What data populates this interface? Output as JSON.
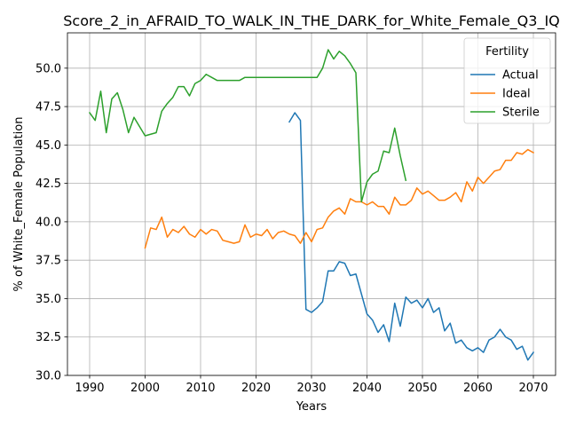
{
  "chart_data": {
    "type": "line",
    "title": "Score_2_in_AFRAID_TO_WALK_IN_THE_DARK_for_White_Female_Q3_IQ",
    "xlabel": "Years",
    "ylabel": "% of White_Female Population",
    "xlim": [
      1986,
      2074
    ],
    "ylim": [
      30.0,
      52.3
    ],
    "xticks": [
      1990,
      2000,
      2010,
      2020,
      2030,
      2040,
      2050,
      2060,
      2070
    ],
    "yticks": [
      30.0,
      32.5,
      35.0,
      37.5,
      40.0,
      42.5,
      45.0,
      47.5,
      50.0
    ],
    "grid": true,
    "legend": {
      "title": "Fertility",
      "placement": "top-right"
    },
    "series": [
      {
        "name": "Actual",
        "color": "#1f77b4",
        "x": [
          2026,
          2027,
          2028,
          2029,
          2030,
          2031,
          2032,
          2033,
          2034,
          2035,
          2036,
          2037,
          2038,
          2039,
          2040,
          2041,
          2042,
          2043,
          2044,
          2045,
          2046,
          2047,
          2048,
          2049,
          2050,
          2051,
          2052,
          2053,
          2054,
          2055,
          2056,
          2057,
          2058,
          2059,
          2060,
          2061,
          2062,
          2063,
          2064,
          2065,
          2066,
          2067,
          2068,
          2069,
          2070
        ],
        "y": [
          46.5,
          47.1,
          46.6,
          34.3,
          34.1,
          34.4,
          34.8,
          36.8,
          36.8,
          37.4,
          37.3,
          36.5,
          36.6,
          35.3,
          34.0,
          33.6,
          32.8,
          33.3,
          32.2,
          34.7,
          33.2,
          35.1,
          34.7,
          34.9,
          34.4,
          35.0,
          34.1,
          34.4,
          32.9,
          33.4,
          32.1,
          32.3,
          31.8,
          31.6,
          31.8,
          31.5,
          32.3,
          32.5,
          33.0,
          32.5,
          32.3,
          31.7,
          31.9,
          31.0,
          31.5
        ]
      },
      {
        "name": "Ideal",
        "color": "#ff7f0e",
        "x": [
          2000,
          2001,
          2002,
          2003,
          2004,
          2005,
          2006,
          2007,
          2008,
          2009,
          2010,
          2011,
          2012,
          2013,
          2014,
          2015,
          2016,
          2017,
          2018,
          2019,
          2020,
          2021,
          2022,
          2023,
          2024,
          2025,
          2026,
          2027,
          2028,
          2029,
          2030,
          2031,
          2032,
          2033,
          2034,
          2035,
          2036,
          2037,
          2038,
          2039,
          2040,
          2041,
          2042,
          2043,
          2044,
          2045,
          2046,
          2047,
          2048,
          2049,
          2050,
          2051,
          2052,
          2053,
          2054,
          2055,
          2056,
          2057,
          2058,
          2059,
          2060,
          2061,
          2062,
          2063,
          2064,
          2065,
          2066,
          2067,
          2068,
          2069,
          2070
        ],
        "y": [
          38.3,
          39.6,
          39.5,
          40.3,
          39.0,
          39.5,
          39.3,
          39.7,
          39.2,
          39.0,
          39.5,
          39.2,
          39.5,
          39.4,
          38.8,
          38.7,
          38.6,
          38.7,
          39.8,
          39.0,
          39.2,
          39.1,
          39.5,
          38.9,
          39.3,
          39.4,
          39.2,
          39.1,
          38.6,
          39.3,
          38.7,
          39.5,
          39.6,
          40.3,
          40.7,
          40.9,
          40.5,
          41.5,
          41.3,
          41.3,
          41.1,
          41.3,
          41.0,
          41.0,
          40.5,
          41.6,
          41.1,
          41.1,
          41.4,
          42.2,
          41.8,
          42.0,
          41.7,
          41.4,
          41.4,
          41.6,
          41.9,
          41.3,
          42.6,
          42.0,
          42.9,
          42.5,
          42.9,
          43.3,
          43.4,
          44.0,
          44.0,
          44.5,
          44.4,
          44.7,
          44.5
        ]
      },
      {
        "name": "Sterile",
        "color": "#2ca02c",
        "x": [
          1990,
          1991,
          1992,
          1993,
          1994,
          1995,
          1996,
          1997,
          1998,
          1999,
          2000,
          2001,
          2002,
          2003,
          2004,
          2005,
          2006,
          2007,
          2008,
          2009,
          2010,
          2011,
          2012,
          2013,
          2014,
          2015,
          2016,
          2017,
          2018,
          2019,
          2020,
          2021,
          2022,
          2023,
          2024,
          2025,
          2026,
          2027,
          2028,
          2029,
          2030,
          2031,
          2032,
          2033,
          2034,
          2035,
          2036,
          2037,
          2038,
          2039,
          2040,
          2041,
          2042,
          2043,
          2044,
          2045,
          2046,
          2047
        ],
        "y": [
          47.1,
          46.6,
          48.5,
          45.8,
          48.0,
          48.4,
          47.3,
          45.8,
          46.8,
          46.2,
          45.6,
          45.7,
          45.8,
          47.2,
          47.7,
          48.1,
          48.8,
          48.8,
          48.2,
          49.0,
          49.2,
          49.6,
          49.4,
          49.2,
          49.2,
          49.2,
          49.2,
          49.2,
          49.4,
          49.4,
          49.4,
          49.4,
          49.4,
          49.4,
          49.4,
          49.4,
          49.4,
          49.4,
          49.4,
          49.4,
          49.4,
          49.4,
          50.0,
          51.2,
          50.6,
          51.1,
          50.8,
          50.3,
          49.7,
          41.3,
          42.6,
          43.1,
          43.3,
          44.6,
          44.5,
          46.1,
          44.3,
          42.7
        ]
      }
    ]
  }
}
